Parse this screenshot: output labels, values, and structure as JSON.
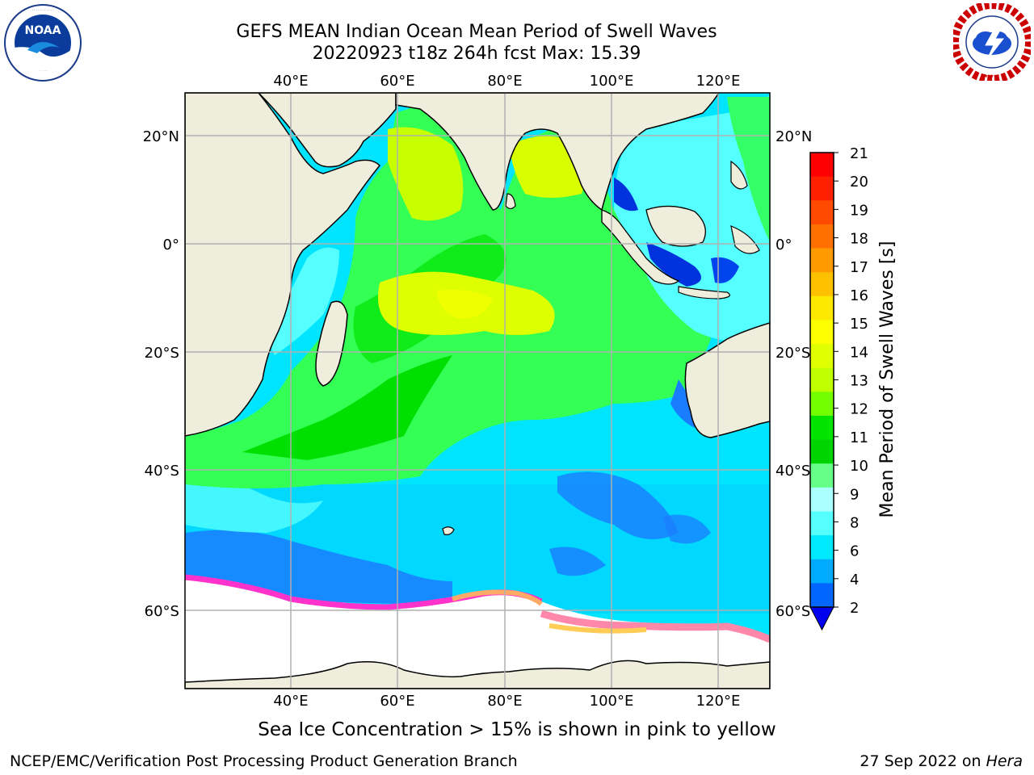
{
  "header": {
    "title_line1": "GEFS MEAN Indian Ocean Mean Period of Swell Waves",
    "title_line2": "20220923 t18z 264h fcst   Max: 15.39"
  },
  "logos": {
    "left": {
      "text": "NOAA",
      "ring_text": "NATIONAL OCEANIC AND ATMOSPHERIC ADMINISTRATION · U.S. DEPARTMENT OF COMMERCE"
    },
    "right": {
      "ring_text": "NATIONAL WEATHER SERVICE"
    }
  },
  "map": {
    "lon_ticks": [
      "40°E",
      "60°E",
      "80°E",
      "100°E",
      "120°E"
    ],
    "lat_ticks_left": [
      "20°N",
      "0°",
      "20°S",
      "40°S",
      "60°S"
    ],
    "lat_ticks_right": [
      "20°N",
      "0°",
      "20°S",
      "40°S",
      "60°S"
    ],
    "ocean_color": "#00e5ff",
    "land_color": "#efeddc",
    "ice_colors": [
      "#ff33cc",
      "#ff88aa",
      "#ffcc55"
    ]
  },
  "colorbar": {
    "label": "Mean Period of Swell Waves [s]",
    "ticks": [
      "21",
      "20",
      "19",
      "18",
      "17",
      "16",
      "15",
      "14",
      "13",
      "12",
      "11",
      "10",
      "9",
      "8",
      "6",
      "4",
      "2"
    ],
    "colors": [
      "#ff0000",
      "#ff2000",
      "#ff4a00",
      "#ff7000",
      "#ff9a00",
      "#ffc000",
      "#ffe800",
      "#fcff00",
      "#e0ff00",
      "#c0ff00",
      "#73ff00",
      "#00e400",
      "#00d400",
      "#66ff88",
      "#aaffff",
      "#55ffff",
      "#00e8ff",
      "#00aaff",
      "#0066ff",
      "#0000ee"
    ]
  },
  "footer": {
    "note": "Sea Ice Concentration > 15% is shown in pink to yellow",
    "branch": "NCEP/EMC/Verification Post Processing Product Generation Branch",
    "date": "27 Sep 2022 on ",
    "machine": "Hera"
  }
}
